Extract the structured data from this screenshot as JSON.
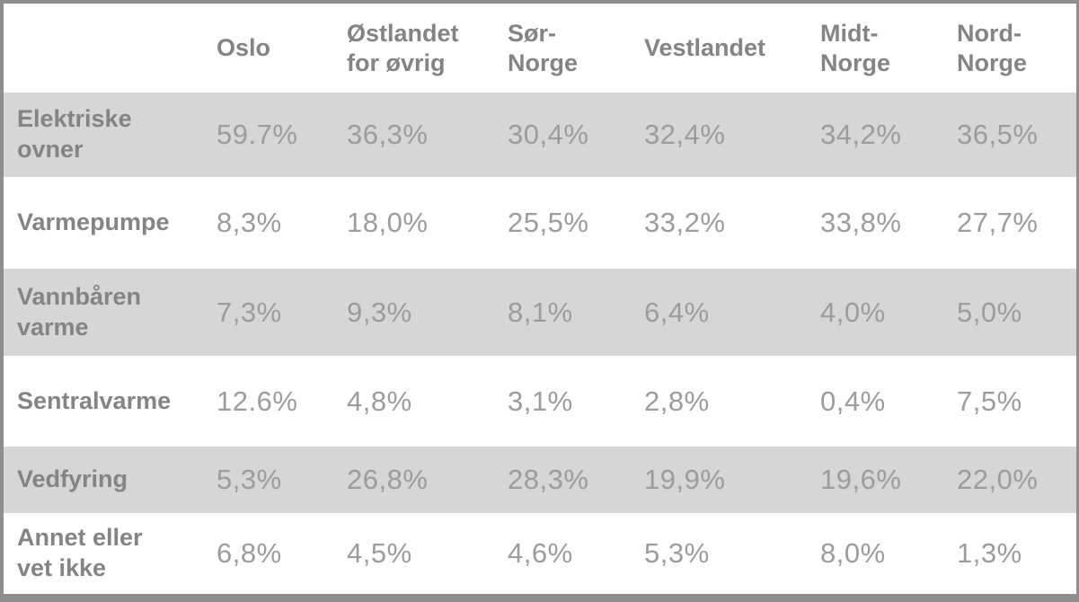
{
  "colors": {
    "border": "#8e8e8e",
    "row_stripe": "#d6d6d6",
    "header_text": "#848484",
    "value_text": "#9c9c9c",
    "background": "#ffffff"
  },
  "table": {
    "corner_label": "",
    "columns": [
      "Oslo",
      "Østlandet\nfor øvrig",
      "Sør-\nNorge",
      "Vestlandet",
      "Midt-\nNorge",
      "Nord-\nNorge"
    ],
    "rows": [
      {
        "label": "Elektriske\novner",
        "values": [
          "59.7%",
          "36,3%",
          "30,4%",
          "32,4%",
          "34,2%",
          "36,5%"
        ]
      },
      {
        "label": "Varmepumpe",
        "values": [
          "8,3%",
          "18,0%",
          "25,5%",
          "33,2%",
          "33,8%",
          "27,7%"
        ]
      },
      {
        "label": "Vannbåren\nvarme",
        "values": [
          "7,3%",
          "9,3%",
          "8,1%",
          "6,4%",
          "4,0%",
          "5,0%"
        ]
      },
      {
        "label": "Sentralvarme",
        "values": [
          "12.6%",
          "4,8%",
          "3,1%",
          "2,8%",
          "0,4%",
          "7,5%"
        ]
      },
      {
        "label": "Vedfyring",
        "values": [
          "5,3%",
          "26,8%",
          "28,3%",
          "19,9%",
          "19,6%",
          "22,0%"
        ]
      },
      {
        "label": "Annet eller\nvet ikke",
        "values": [
          "6,8%",
          "4,5%",
          "4,6%",
          "5,3%",
          "8,0%",
          "1,3%"
        ]
      }
    ]
  },
  "chart_data": {
    "type": "table",
    "title": "",
    "columns": [
      "Oslo",
      "Østlandet for øvrig",
      "Sør-Norge",
      "Vestlandet",
      "Midt-Norge",
      "Nord-Norge"
    ],
    "rows": [
      "Elektriske ovner",
      "Varmepumpe",
      "Vannbåren varme",
      "Sentralvarme",
      "Vedfyring",
      "Annet eller vet ikke"
    ],
    "values_percent": [
      [
        59.7,
        36.3,
        30.4,
        32.4,
        34.2,
        36.5
      ],
      [
        8.3,
        18.0,
        25.5,
        33.2,
        33.8,
        27.7
      ],
      [
        7.3,
        9.3,
        8.1,
        6.4,
        4.0,
        5.0
      ],
      [
        12.6,
        4.8,
        3.1,
        2.8,
        0.4,
        7.5
      ],
      [
        5.3,
        26.8,
        28.3,
        19.9,
        19.6,
        22.0
      ],
      [
        6.8,
        4.5,
        4.6,
        5.3,
        8.0,
        1.3
      ]
    ],
    "unit": "%",
    "legend_position": "none",
    "grid": false
  }
}
